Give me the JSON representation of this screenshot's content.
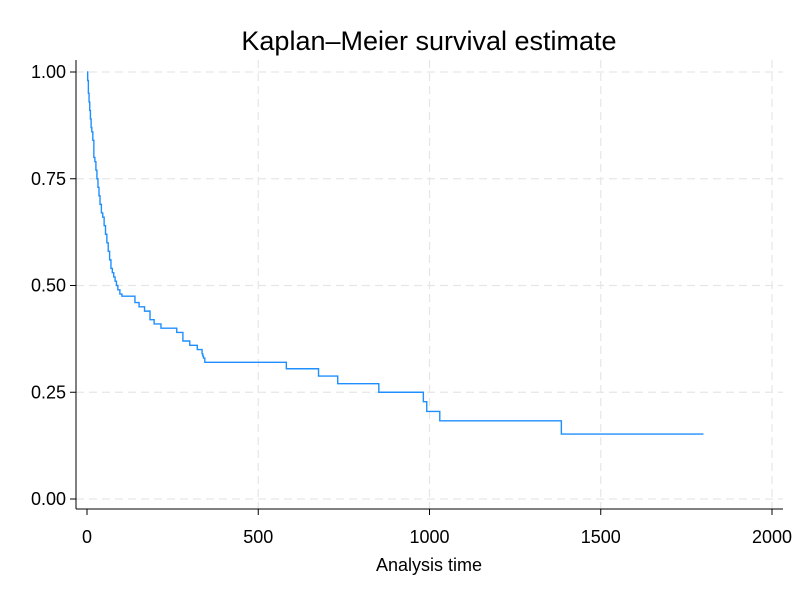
{
  "chart_data": {
    "type": "line",
    "title": "Kaplan–Meier survival estimate",
    "xlabel": "Analysis time",
    "ylabel": "",
    "xlim": [
      0,
      2000
    ],
    "ylim": [
      0,
      1
    ],
    "x_ticks": [
      0,
      500,
      1000,
      1500,
      2000
    ],
    "x_tick_labels": [
      "0",
      "500",
      "1000",
      "1500",
      "2000"
    ],
    "y_ticks": [
      0,
      0.25,
      0.5,
      0.75,
      1.0
    ],
    "y_tick_labels": [
      "0.00",
      "0.25",
      "0.50",
      "0.75",
      "1.00"
    ],
    "grid": true,
    "legend": "none",
    "step": true,
    "line_color": "#1f8fff",
    "series": [
      {
        "x": [
          0,
          2,
          4,
          6,
          8,
          10,
          12,
          14,
          17,
          20,
          23,
          26,
          29,
          32,
          35,
          38,
          42,
          46,
          50,
          54,
          58,
          62,
          66,
          70,
          74,
          78,
          82,
          86,
          90,
          96,
          102,
          108,
          140,
          152,
          168,
          184,
          196,
          216,
          262,
          280,
          300,
          322,
          336,
          338,
          340,
          344,
          582,
          676,
          732,
          852,
          982,
          992,
          1030,
          1385,
          1800
        ],
        "y": [
          1.0,
          0.98,
          0.95,
          0.93,
          0.91,
          0.89,
          0.87,
          0.86,
          0.84,
          0.8,
          0.79,
          0.77,
          0.75,
          0.73,
          0.71,
          0.69,
          0.67,
          0.66,
          0.64,
          0.62,
          0.6,
          0.58,
          0.56,
          0.54,
          0.53,
          0.52,
          0.51,
          0.5,
          0.49,
          0.48,
          0.475,
          0.475,
          0.46,
          0.45,
          0.44,
          0.42,
          0.41,
          0.4,
          0.39,
          0.37,
          0.36,
          0.35,
          0.34,
          0.335,
          0.33,
          0.32,
          0.305,
          0.288,
          0.27,
          0.25,
          0.228,
          0.205,
          0.183,
          0.152,
          0.152
        ]
      }
    ]
  }
}
